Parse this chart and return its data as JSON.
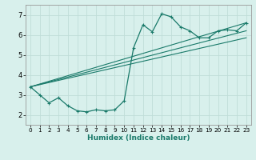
{
  "xlabel": "Humidex (Indice chaleur)",
  "background_color": "#d8f0ec",
  "grid_color": "#c0ddd8",
  "line_color": "#1a7a6a",
  "xlim": [
    -0.5,
    23.5
  ],
  "ylim": [
    1.5,
    7.5
  ],
  "yticks": [
    2,
    3,
    4,
    5,
    6,
    7
  ],
  "xticks": [
    0,
    1,
    2,
    3,
    4,
    5,
    6,
    7,
    8,
    9,
    10,
    11,
    12,
    13,
    14,
    15,
    16,
    17,
    18,
    19,
    20,
    21,
    22,
    23
  ],
  "main_x": [
    0,
    1,
    2,
    3,
    4,
    5,
    6,
    7,
    8,
    9,
    10,
    11,
    12,
    13,
    14,
    15,
    16,
    17,
    18,
    19,
    20,
    21,
    22,
    23
  ],
  "main_y": [
    3.4,
    3.0,
    2.6,
    2.85,
    2.45,
    2.2,
    2.15,
    2.25,
    2.2,
    2.25,
    2.7,
    5.35,
    6.5,
    6.15,
    7.05,
    6.9,
    6.4,
    6.2,
    5.85,
    5.85,
    6.2,
    6.25,
    6.2,
    6.6
  ],
  "trend_lines": [
    {
      "x": [
        0,
        23
      ],
      "y": [
        3.4,
        6.6
      ]
    },
    {
      "x": [
        0,
        23
      ],
      "y": [
        3.4,
        6.2
      ]
    },
    {
      "x": [
        0,
        23
      ],
      "y": [
        3.4,
        5.85
      ]
    }
  ]
}
